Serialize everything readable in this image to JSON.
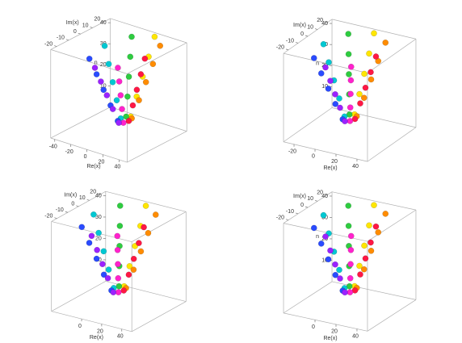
{
  "chart_data": [
    {
      "type": "scatter3d",
      "xlabel": "Re(x)",
      "ylabel": "Im(x)",
      "zlabel": "n",
      "xlim": [
        -45,
        50
      ],
      "ylim": [
        -25,
        25
      ],
      "zlim": [
        0,
        42
      ],
      "xticks": [
        -40,
        -20,
        0,
        20,
        40
      ],
      "yticks": [
        -20,
        -10,
        0,
        10,
        20
      ],
      "zticks": [
        10,
        20,
        30,
        40
      ],
      "series": [
        {
          "color": "#ff1744",
          "x": [
            15,
            20,
            25,
            30,
            35
          ],
          "y": [
            0,
            0,
            0,
            0,
            0
          ],
          "z": [
            8,
            16,
            24,
            32,
            40
          ]
        },
        {
          "color": "#ff8c00",
          "x": [
            13.5,
            17.1,
            20.6,
            24.1,
            27.7
          ],
          "y": [
            3.5,
            7.1,
            10.6,
            14.1,
            17.7
          ],
          "z": [
            8,
            16,
            24,
            32,
            40
          ]
        },
        {
          "color": "#ffe600",
          "x": [
            10,
            10,
            10,
            10,
            10
          ],
          "y": [
            5,
            10,
            15,
            20,
            25
          ],
          "z": [
            8,
            16,
            24,
            32,
            40
          ]
        },
        {
          "color": "#2ecc40",
          "x": [
            6.5,
            2.9,
            -0.6,
            -4.1,
            -7.7
          ],
          "y": [
            3.5,
            7.1,
            10.6,
            14.1,
            17.7
          ],
          "z": [
            8,
            16,
            24,
            32,
            40
          ]
        },
        {
          "color": "#00c8d2",
          "x": [
            5,
            0,
            -5,
            -10,
            -15
          ],
          "y": [
            0,
            0,
            0,
            0,
            0
          ],
          "z": [
            8,
            16,
            24,
            32,
            40
          ]
        },
        {
          "color": "#2a4bff",
          "x": [
            6.5,
            2.9,
            -0.6,
            -4.1,
            -7.7
          ],
          "y": [
            -3.5,
            -7.1,
            -10.6,
            -14.1,
            -17.7
          ],
          "z": [
            8,
            16,
            24,
            32,
            40
          ]
        },
        {
          "color": "#9b22ff",
          "x": [
            10,
            10,
            10,
            10,
            10
          ],
          "y": [
            -5,
            -10,
            -15,
            -20,
            -25
          ],
          "z": [
            8,
            16,
            24,
            32,
            40
          ]
        },
        {
          "color": "#ff22cc",
          "x": [
            13.5,
            17.1,
            20.6,
            24.1,
            27.7
          ],
          "y": [
            -3.5,
            -7.1,
            -10.6,
            -14.1,
            -17.7
          ],
          "z": [
            8,
            16,
            24,
            32,
            40
          ]
        }
      ]
    },
    {
      "type": "scatter3d",
      "xlabel": "Re(x)",
      "ylabel": "Im(x)",
      "zlabel": "n",
      "xlim": [
        -30,
        50
      ],
      "ylim": [
        -25,
        25
      ],
      "zlim": [
        0,
        42
      ],
      "xticks": [
        -20,
        0,
        20,
        40
      ],
      "yticks": [
        -20,
        -10,
        0,
        10,
        20
      ],
      "zticks": [
        10,
        20,
        30,
        40
      ],
      "series": [
        {
          "color": "#ff1744",
          "x": [
            15,
            20,
            25,
            30,
            35
          ],
          "y": [
            0,
            0,
            0,
            0,
            0
          ],
          "z": [
            8,
            16,
            24,
            32,
            40
          ]
        },
        {
          "color": "#ff8c00",
          "x": [
            13.5,
            17.1,
            20.6,
            24.1,
            27.7
          ],
          "y": [
            3.5,
            7.1,
            10.6,
            14.1,
            17.7
          ],
          "z": [
            8,
            16,
            24,
            32,
            40
          ]
        },
        {
          "color": "#ffe600",
          "x": [
            10,
            10,
            10,
            10,
            10
          ],
          "y": [
            5,
            10,
            15,
            20,
            25
          ],
          "z": [
            8,
            16,
            24,
            32,
            40
          ]
        },
        {
          "color": "#2ecc40",
          "x": [
            6.5,
            2.9,
            -0.6,
            -4.1,
            -7.7
          ],
          "y": [
            3.5,
            7.1,
            10.6,
            14.1,
            17.7
          ],
          "z": [
            8,
            16,
            24,
            32,
            40
          ]
        },
        {
          "color": "#00c8d2",
          "x": [
            5,
            0,
            -5,
            -10,
            -15
          ],
          "y": [
            0,
            0,
            0,
            0,
            0
          ],
          "z": [
            8,
            16,
            24,
            32,
            40
          ]
        },
        {
          "color": "#2a4bff",
          "x": [
            6.5,
            2.9,
            -0.6,
            -4.1,
            -7.7
          ],
          "y": [
            -3.5,
            -7.1,
            -10.6,
            -14.1,
            -17.7
          ],
          "z": [
            8,
            16,
            24,
            32,
            40
          ]
        },
        {
          "color": "#9b22ff",
          "x": [
            10,
            10,
            10,
            10,
            10
          ],
          "y": [
            -5,
            -10,
            -15,
            -20,
            -25
          ],
          "z": [
            8,
            16,
            24,
            32,
            40
          ]
        },
        {
          "color": "#ff22cc",
          "x": [
            13.5,
            17.1,
            20.6,
            24.1,
            27.7
          ],
          "y": [
            -3.5,
            -7.1,
            -10.6,
            -14.1,
            -17.7
          ],
          "z": [
            8,
            16,
            24,
            32,
            40
          ]
        }
      ]
    },
    {
      "type": "scatter3d",
      "xlabel": "Re(x)",
      "ylabel": "Im(x)",
      "zlabel": "n",
      "xlim": [
        -30,
        50
      ],
      "ylim": [
        -25,
        25
      ],
      "zlim": [
        0,
        42
      ],
      "xticks": [
        0,
        20,
        40
      ],
      "yticks": [
        -20,
        -10,
        0,
        10,
        20
      ],
      "zticks": [
        10,
        20,
        30,
        40
      ],
      "series": [
        {
          "color": "#ff1744",
          "x": [
            15,
            20,
            25,
            30,
            35
          ],
          "y": [
            0,
            0,
            0,
            0,
            0
          ],
          "z": [
            8,
            16,
            24,
            32,
            40
          ]
        },
        {
          "color": "#ff8c00",
          "x": [
            13.5,
            17.1,
            20.6,
            24.1,
            27.7
          ],
          "y": [
            3.5,
            7.1,
            10.6,
            14.1,
            17.7
          ],
          "z": [
            8,
            16,
            24,
            32,
            40
          ]
        },
        {
          "color": "#ffe600",
          "x": [
            10,
            10,
            10,
            10,
            10
          ],
          "y": [
            5,
            10,
            15,
            20,
            25
          ],
          "z": [
            8,
            16,
            24,
            32,
            40
          ]
        },
        {
          "color": "#2ecc40",
          "x": [
            6.5,
            2.9,
            -0.6,
            -4.1,
            -7.7
          ],
          "y": [
            3.5,
            7.1,
            10.6,
            14.1,
            17.7
          ],
          "z": [
            8,
            16,
            24,
            32,
            40
          ]
        },
        {
          "color": "#00c8d2",
          "x": [
            5,
            0,
            -5,
            -10,
            -15
          ],
          "y": [
            0,
            0,
            0,
            0,
            0
          ],
          "z": [
            8,
            16,
            24,
            32,
            40
          ]
        },
        {
          "color": "#2a4bff",
          "x": [
            6.5,
            2.9,
            -0.6,
            -4.1,
            -7.7
          ],
          "y": [
            -3.5,
            -7.1,
            -10.6,
            -14.1,
            -17.7
          ],
          "z": [
            8,
            16,
            24,
            32,
            40
          ]
        },
        {
          "color": "#9b22ff",
          "x": [
            10,
            10,
            10,
            10,
            10
          ],
          "y": [
            -5,
            -10,
            -15,
            -20,
            -25
          ],
          "z": [
            8,
            16,
            24,
            32,
            40
          ]
        },
        {
          "color": "#ff22cc",
          "x": [
            13.5,
            17.1,
            20.6,
            24.1,
            27.7
          ],
          "y": [
            -3.5,
            -7.1,
            -10.6,
            -14.1,
            -17.7
          ],
          "z": [
            8,
            16,
            24,
            32,
            40
          ]
        }
      ]
    },
    {
      "type": "scatter3d",
      "xlabel": "Re(x)",
      "ylabel": "Im(x)",
      "zlabel": "n",
      "xlim": [
        -30,
        50
      ],
      "ylim": [
        -25,
        25
      ],
      "zlim": [
        0,
        42
      ],
      "xticks": [
        0,
        20,
        40
      ],
      "yticks": [
        -20,
        -10,
        0,
        10,
        20
      ],
      "zticks": [
        10,
        20,
        30,
        40
      ],
      "series": [
        {
          "color": "#ff1744",
          "x": [
            15,
            20,
            25,
            30,
            35
          ],
          "y": [
            0,
            0,
            0,
            0,
            0
          ],
          "z": [
            8,
            16,
            24,
            32,
            40
          ]
        },
        {
          "color": "#ff8c00",
          "x": [
            13.5,
            17.1,
            20.6,
            24.1,
            27.7
          ],
          "y": [
            3.5,
            7.1,
            10.6,
            14.1,
            17.7
          ],
          "z": [
            8,
            16,
            24,
            32,
            40
          ]
        },
        {
          "color": "#ffe600",
          "x": [
            10,
            10,
            10,
            10,
            10
          ],
          "y": [
            5,
            10,
            15,
            20,
            25
          ],
          "z": [
            8,
            16,
            24,
            32,
            40
          ]
        },
        {
          "color": "#2ecc40",
          "x": [
            6.5,
            2.9,
            -0.6,
            -4.1,
            -7.7
          ],
          "y": [
            3.5,
            7.1,
            10.6,
            14.1,
            17.7
          ],
          "z": [
            8,
            16,
            24,
            32,
            40
          ]
        },
        {
          "color": "#00c8d2",
          "x": [
            5,
            0,
            -5,
            -10,
            -15
          ],
          "y": [
            0,
            0,
            0,
            0,
            0
          ],
          "z": [
            8,
            16,
            24,
            32,
            40
          ]
        },
        {
          "color": "#2a4bff",
          "x": [
            6.5,
            2.9,
            -0.6,
            -4.1,
            -7.7
          ],
          "y": [
            -3.5,
            -7.1,
            -10.6,
            -14.1,
            -17.7
          ],
          "z": [
            8,
            16,
            24,
            32,
            40
          ]
        },
        {
          "color": "#9b22ff",
          "x": [
            10,
            10,
            10,
            10,
            10
          ],
          "y": [
            -5,
            -10,
            -15,
            -20,
            -25
          ],
          "z": [
            8,
            16,
            24,
            32,
            40
          ]
        },
        {
          "color": "#ff22cc",
          "x": [
            13.5,
            17.1,
            20.6,
            24.1,
            27.7
          ],
          "y": [
            -3.5,
            -7.1,
            -10.6,
            -14.1,
            -17.7
          ],
          "z": [
            8,
            16,
            24,
            32,
            40
          ]
        }
      ]
    }
  ]
}
